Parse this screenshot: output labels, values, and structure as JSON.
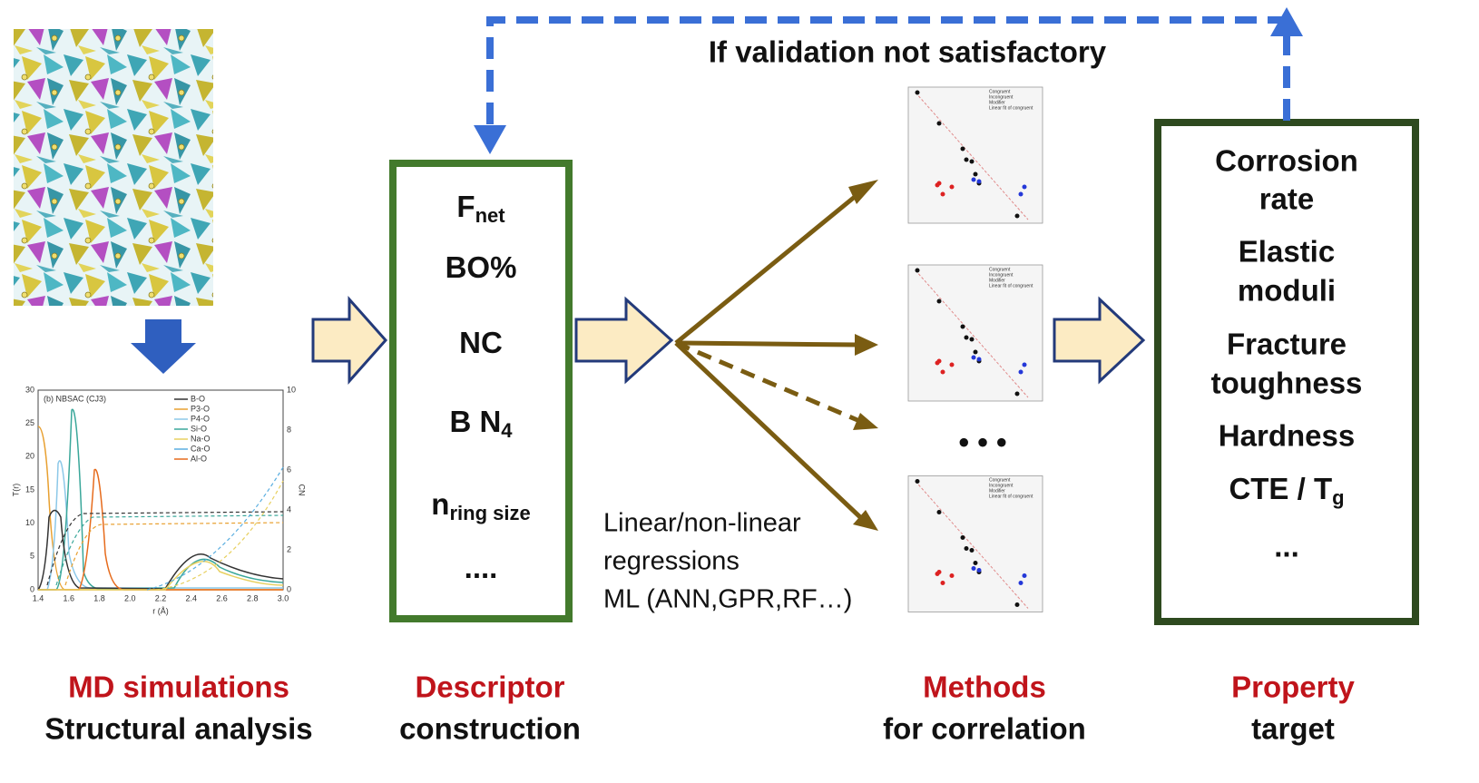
{
  "loop_label": "If validation not satisfactory",
  "rdf_plot": {
    "title": "(b) NBSAC (CJ3)",
    "legend": [
      "B-O",
      "P3-O",
      "P4-O",
      "Si-O",
      "Na-O",
      "Ca-O",
      "Al-O"
    ],
    "x_label": "r (Å)",
    "y_label": "T(r)",
    "y2_label": "CN",
    "xticks": [
      "1.4",
      "1.6",
      "1.8",
      "2.0",
      "2.2",
      "2.4",
      "2.6",
      "2.8",
      "3.0"
    ],
    "yticks": [
      "0",
      "5",
      "10",
      "15",
      "20",
      "25",
      "30"
    ],
    "y2ticks": [
      "0",
      "2",
      "4",
      "6",
      "8",
      "10"
    ]
  },
  "descriptors": [
    {
      "text": "F",
      "sub": "net"
    },
    {
      "text": "BO%"
    },
    {
      "text": "NC"
    },
    {
      "text": "B N",
      "sub": "4"
    },
    {
      "text": "n",
      "sub": "ring size"
    },
    {
      "text": "...."
    }
  ],
  "methods_text": [
    "Linear/non-linear",
    "regressions",
    "ML (ANN,GPR,RF…)"
  ],
  "more_plots": "• • •",
  "scatter_legend": [
    "Congruent",
    "Incongruent",
    "Modifier",
    "Linear fit of congruent"
  ],
  "properties": [
    [
      "Corrosion",
      "rate"
    ],
    [
      "Elastic",
      "moduli"
    ],
    [
      "Fracture",
      "toughness"
    ],
    [
      "Hardness"
    ],
    [
      {
        "text": "CTE / T",
        "sub": "g"
      }
    ],
    [
      "..."
    ]
  ],
  "stages": [
    {
      "title": "MD simulations",
      "subtitle": "Structural analysis"
    },
    {
      "title": "Descriptor",
      "subtitle": "construction"
    },
    {
      "title": "Methods",
      "subtitle": "for correlation"
    },
    {
      "title": "Property",
      "subtitle": "target"
    }
  ]
}
